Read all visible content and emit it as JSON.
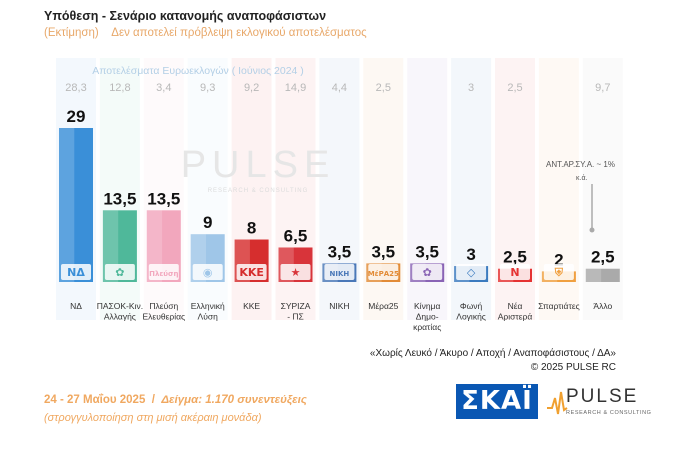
{
  "header": {
    "title": "Υπόθεση - Σενάριο κατανομής αναποφάσιστων",
    "estimate_label": "(Εκτίμηση)",
    "disclaimer": "Δεν αποτελεί πρόβλεψη εκλογικού αποτελέσματος"
  },
  "chart_data": {
    "type": "bar",
    "reference_label": "Αποτελέσματα Ευρωεκλογών   ( Ιούνιος 2024 )",
    "categories": [
      "ΝΔ",
      "ΠΑΣΟΚ-Κιν. Αλλαγής",
      "Πλεύση Ελευθερίας",
      "Ελληνική Λύση",
      "ΚΚΕ",
      "ΣΥΡΙΖΑ - ΠΣ",
      "ΝΙΚΗ",
      "Μέρα25",
      "Κίνημα Δημοκρατίας",
      "Φωνή Λογικής",
      "Νέα Αριστερά",
      "Σπαρτιάτες",
      "Άλλο"
    ],
    "category_lines": [
      [
        "ΝΔ"
      ],
      [
        "ΠΑΣΟΚ-Κιν.",
        "Αλλαγής"
      ],
      [
        "Πλεύση",
        "Ελευθερίας"
      ],
      [
        "Ελληνική",
        "Λύση"
      ],
      [
        "ΚΚΕ"
      ],
      [
        "ΣΥΡΙΖΑ",
        "- ΠΣ"
      ],
      [
        "ΝΙΚΗ"
      ],
      [
        "Μέρα25"
      ],
      [
        "Κίνημα",
        "Δημο-",
        "κρατίας"
      ],
      [
        "Φωνή",
        "Λογικής"
      ],
      [
        "Νέα",
        "Αριστερά"
      ],
      [
        "Σπαρτιάτες"
      ],
      [
        "Άλλο"
      ]
    ],
    "series": [
      {
        "values": [
          29,
          13.5,
          13.5,
          9,
          8,
          6.5,
          3.5,
          3.5,
          3.5,
          3,
          2.5,
          2,
          2.5
        ]
      },
      {
        "name": "Αποτελέσματα Ευρωεκλογών ( Ιούνιος 2024 )",
        "values": [
          28.3,
          12.8,
          3.4,
          9.3,
          9.2,
          14.9,
          4.4,
          2.5,
          "",
          3,
          2.5,
          "",
          9.7
        ]
      }
    ],
    "ylim": [
      0,
      30
    ],
    "colors": [
      "#3a8fd8",
      "#4fb89a",
      "#f2a7bd",
      "#9fc6e8",
      "#d62e2e",
      "#d8343a",
      "#4a78b8",
      "#e28b36",
      "#8a64b5",
      "#3b7bbf",
      "#e53333",
      "#f0a040",
      "#aaaaaa"
    ],
    "logos": [
      "ΝΔ",
      "✿",
      "Πλεύση",
      "◉",
      "ΚΚΕ",
      "★",
      "ΝΙΚΗ",
      "ΜέΡΑ25",
      "✿",
      "◇",
      "Ν",
      "⛨",
      ""
    ],
    "annotation": "ΑΝΤ.ΑΡ.ΣΥ.Α. ~ 1%",
    "annotation_sub": "κ.ά.",
    "watermark": "PULSE",
    "watermark_sub": "RESEARCH & CONSULTING"
  },
  "notes": {
    "line1": "«Χωρίς Λευκό / Άκυρο / Αποχή / Αναποφάσιστους / ΔΑ»",
    "line2": "©  2025  PULSE RC"
  },
  "footer": {
    "dates": "24 - 27 Μαΐου 2025",
    "sample": "Δείγμα:  1.170 συνεντεύξεις",
    "rounding": "(στρογγυλοποίηση στη μισή ακέραιη μονάδα)"
  },
  "logos": {
    "skai": "ΣΚΑΪ",
    "pulse": "PULSE",
    "pulse_sub": "RESEARCH & CONSULTING"
  }
}
